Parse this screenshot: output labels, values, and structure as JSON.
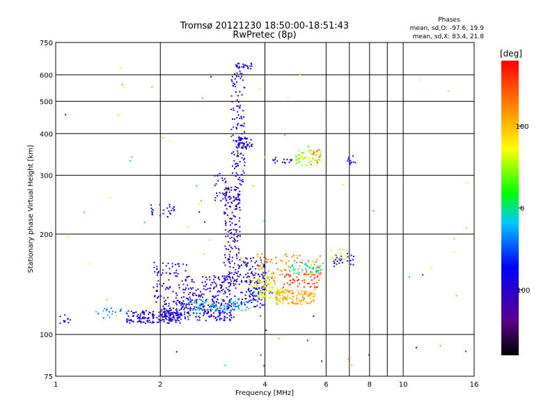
{
  "chart_data": {
    "type": "scatter",
    "title": "Tromsø 20121230 18:50:00-18:51:43",
    "subtitle": "RwPretec (8p)",
    "stats": {
      "heading": "Phases",
      "line_o": "mean, sd,O: -97.6, 19.9",
      "line_x": "mean, sd,X:  83.4, 21.8"
    },
    "xlabel": "Frequency [MHz]",
    "ylabel": "Stationary phase Virtual Height [km]",
    "x_scale": "log2",
    "y_scale": "log",
    "xlim": [
      1,
      16
    ],
    "ylim": [
      75,
      750
    ],
    "x_ticks": [
      {
        "v": 1,
        "label": "1",
        "major": true
      },
      {
        "v": 2,
        "label": "2",
        "major": true
      },
      {
        "v": 4,
        "label": "4",
        "major": true
      },
      {
        "v": 6,
        "label": "6",
        "major": true
      },
      {
        "v": 7,
        "label": "",
        "major": false
      },
      {
        "v": 8,
        "label": "8",
        "major": true
      },
      {
        "v": 9,
        "label": "",
        "major": false
      },
      {
        "v": 10,
        "label": "10",
        "major": true
      },
      {
        "v": 16,
        "label": "16",
        "major": false
      }
    ],
    "y_ticks": [
      {
        "v": 75,
        "label": "75",
        "grid": false
      },
      {
        "v": 100,
        "label": "100",
        "grid": true
      },
      {
        "v": 200,
        "label": "200",
        "grid": true
      },
      {
        "v": 300,
        "label": "300",
        "grid": true
      },
      {
        "v": 400,
        "label": "400",
        "grid": true
      },
      {
        "v": 500,
        "label": "500",
        "grid": true
      },
      {
        "v": 600,
        "label": "600",
        "grid": true
      },
      {
        "v": 750,
        "label": "750",
        "grid": false
      }
    ],
    "grid": true,
    "colorbar": {
      "label": "[deg]",
      "range": [
        -180,
        180
      ],
      "ticks": [
        {
          "v": 100,
          "label": "100"
        },
        {
          "v": 0,
          "label": "0"
        },
        {
          "v": -100,
          "label": "-100"
        }
      ],
      "colormap": "rainbow"
    },
    "clusters": [
      {
        "xr": [
          1.6,
          2.3
        ],
        "yr": [
          108,
          118
        ],
        "ph": -100,
        "n": 160
      },
      {
        "xr": [
          2.0,
          3.3
        ],
        "yr": [
          110,
          125
        ],
        "ph": -95,
        "n": 220
      },
      {
        "xr": [
          2.4,
          3.6
        ],
        "yr": [
          118,
          128
        ],
        "ph": -25,
        "n": 90
      },
      {
        "xr": [
          1.3,
          1.6
        ],
        "yr": [
          112,
          120
        ],
        "ph": -40,
        "n": 20
      },
      {
        "xr": [
          1.03,
          1.12
        ],
        "yr": [
          108,
          115
        ],
        "ph": -95,
        "n": 10
      },
      {
        "xr": [
          1.9,
          2.4
        ],
        "yr": [
          125,
          165
        ],
        "ph": -110,
        "n": 90
      },
      {
        "xr": [
          2.4,
          3.3
        ],
        "yr": [
          125,
          150
        ],
        "ph": -105,
        "n": 130
      },
      {
        "xr": [
          3.05,
          3.4
        ],
        "yr": [
          140,
          280
        ],
        "ph": -115,
        "n": 190
      },
      {
        "xr": [
          3.2,
          3.5
        ],
        "yr": [
          280,
          620
        ],
        "ph": -105,
        "n": 120
      },
      {
        "xr": [
          3.3,
          3.7
        ],
        "yr": [
          360,
          390
        ],
        "ph": -100,
        "n": 50
      },
      {
        "xr": [
          3.3,
          3.7
        ],
        "yr": [
          625,
          650
        ],
        "ph": -100,
        "n": 25
      },
      {
        "xr": [
          2.85,
          3.1
        ],
        "yr": [
          250,
          310
        ],
        "ph": -95,
        "n": 25
      },
      {
        "xr": [
          1.85,
          2.2
        ],
        "yr": [
          225,
          245
        ],
        "ph": -100,
        "n": 25
      },
      {
        "xr": [
          3.4,
          4.0
        ],
        "yr": [
          120,
          170
        ],
        "ph": -100,
        "n": 110
      },
      {
        "xr": [
          3.5,
          4.2
        ],
        "yr": [
          130,
          165
        ],
        "ph": -70,
        "n": 40
      },
      {
        "xr": [
          3.6,
          4.3
        ],
        "yr": [
          138,
          150
        ],
        "ph": 90,
        "n": 50
      },
      {
        "xr": [
          3.8,
          4.5
        ],
        "yr": [
          128,
          138
        ],
        "ph": 70,
        "n": 40
      },
      {
        "xr": [
          4.3,
          5.6
        ],
        "yr": [
          123,
          136
        ],
        "ph": 105,
        "n": 120
      },
      {
        "xr": [
          3.8,
          5.8
        ],
        "yr": [
          150,
          175
        ],
        "ph": 115,
        "n": 80
      },
      {
        "xr": [
          4.5,
          5.8
        ],
        "yr": [
          138,
          152
        ],
        "ph": 150,
        "n": 50
      },
      {
        "xr": [
          4.7,
          5.9
        ],
        "yr": [
          152,
          165
        ],
        "ph": -10,
        "n": 40
      },
      {
        "xr": [
          4.9,
          5.8
        ],
        "yr": [
          320,
          360
        ],
        "ph": 50,
        "n": 50
      },
      {
        "xr": [
          4.2,
          4.8
        ],
        "yr": [
          325,
          340
        ],
        "ph": -100,
        "n": 15
      },
      {
        "xr": [
          5.4,
          5.8
        ],
        "yr": [
          320,
          360
        ],
        "ph": 120,
        "n": 15
      },
      {
        "xr": [
          6.3,
          7.2
        ],
        "yr": [
          160,
          175
        ],
        "ph": -100,
        "n": 25
      },
      {
        "xr": [
          6.2,
          6.8
        ],
        "yr": [
          165,
          180
        ],
        "ph": 70,
        "n": 12
      },
      {
        "xr": [
          6.9,
          7.3
        ],
        "yr": [
          320,
          345
        ],
        "ph": -90,
        "n": 10
      },
      {
        "xr": [
          1.05,
          16
        ],
        "yr": [
          80,
          650
        ],
        "ph": 30,
        "n": 70,
        "mixed": true
      }
    ]
  }
}
